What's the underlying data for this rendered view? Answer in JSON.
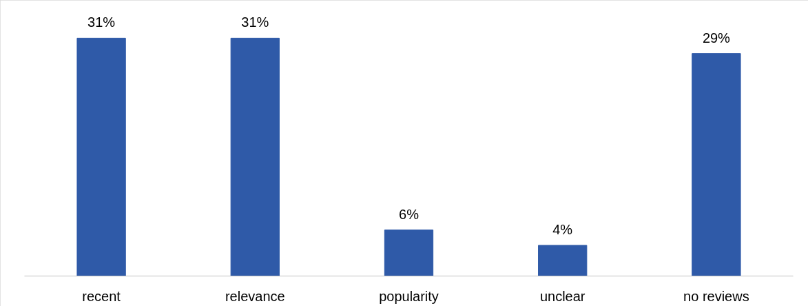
{
  "chart_data": {
    "type": "bar",
    "categories": [
      "recent",
      "relevance",
      "popularity",
      "unclear",
      "no reviews"
    ],
    "values": [
      31,
      31,
      6,
      4,
      29
    ],
    "value_labels": [
      "31%",
      "31%",
      "6%",
      "4%",
      "29%"
    ],
    "color": "#2f5aa8"
  }
}
